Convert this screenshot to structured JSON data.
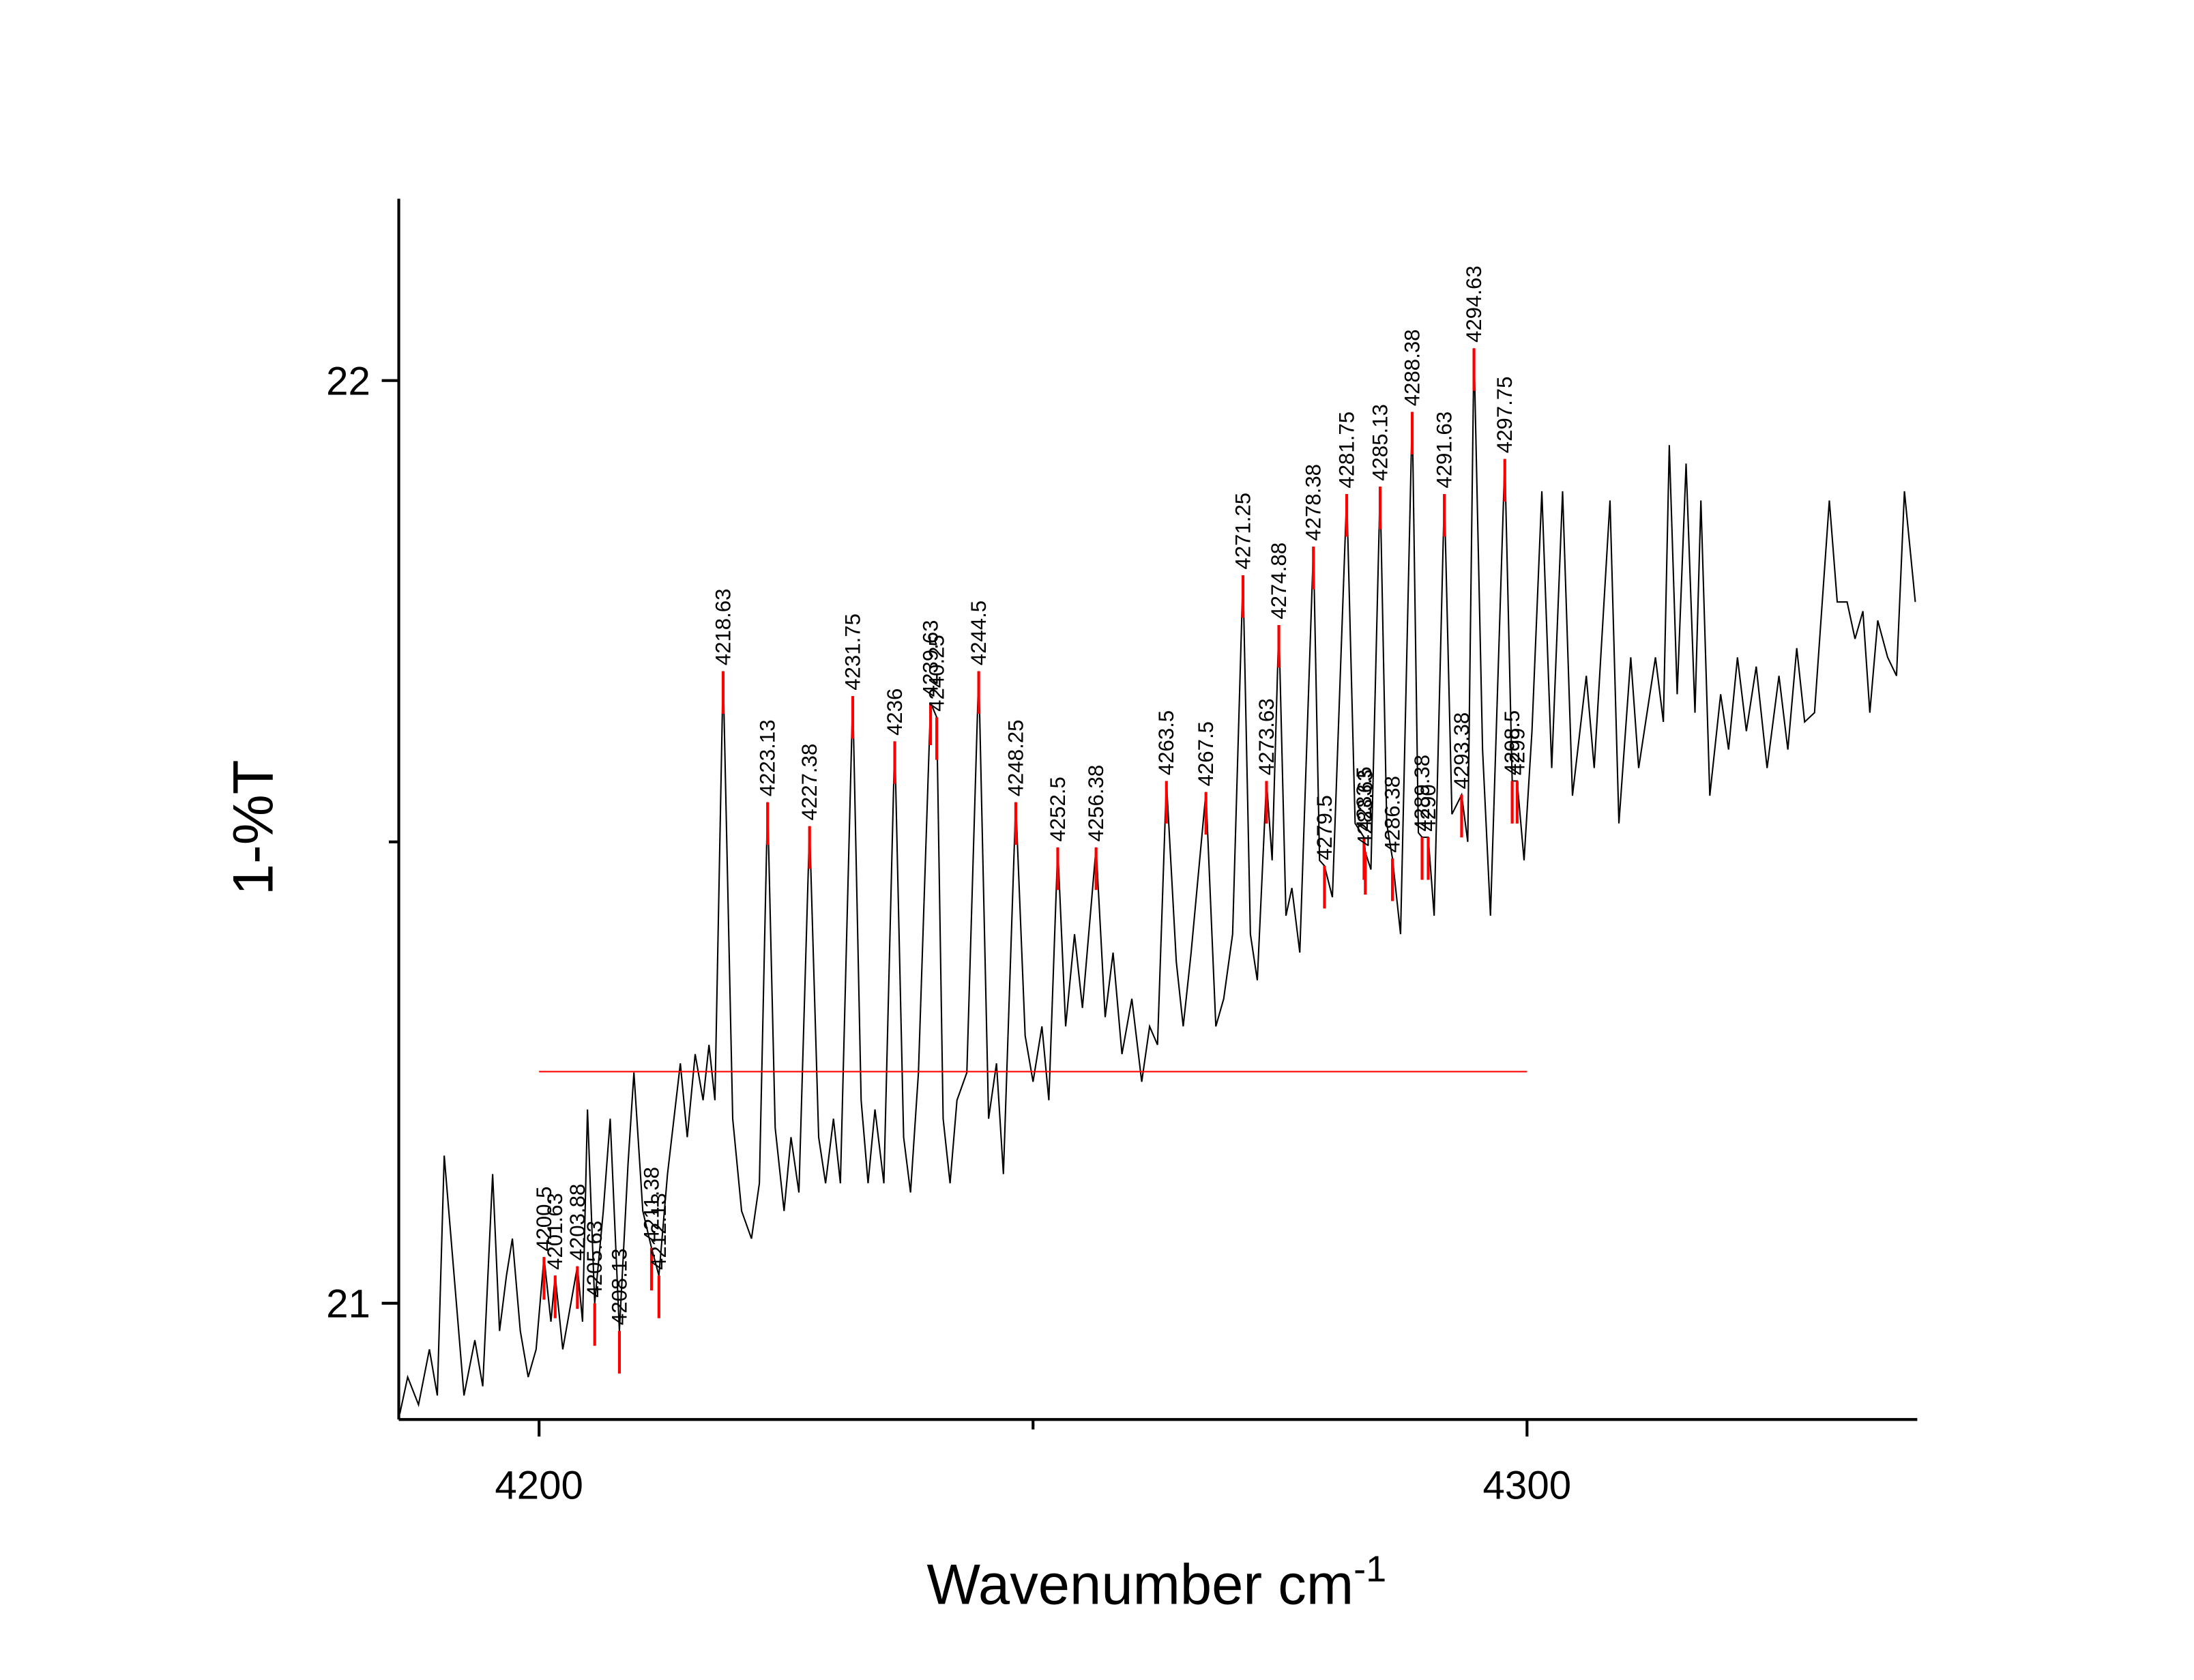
{
  "chart_data": {
    "type": "line",
    "x_label": "Wavenumber cm",
    "x_label_sup": "-1",
    "y_label": "1-%T",
    "xlim": [
      4185.8,
      4339.5
    ],
    "ylim": [
      20.874,
      22.197
    ],
    "xticks": [
      4200,
      4300
    ],
    "xminorticks": [
      4250
    ],
    "yticks": [
      21,
      22
    ],
    "yminorticks": [
      21.5
    ],
    "series": [
      {
        "color": "#000000",
        "x": [
          4185.9,
          4186.7,
          4187.8,
          4188.9,
          4189.7,
          4190.4,
          4191.4,
          4192.4,
          4193.5,
          4194.3,
          4195.3,
          4196.0,
          4196.7,
          4197.3,
          4198.1,
          4198.9,
          4199.7,
          4200.5,
          4201.2,
          4201.63,
          4202.4,
          4203.88,
          4204.4,
          4204.9,
          4205.63,
          4206.5,
          4207.2,
          4208.13,
          4209.0,
          4209.6,
          4210.5,
          4211.38,
          4212.13,
          4213.0,
          4214.3,
          4215.0,
          4215.8,
          4216.6,
          4217.2,
          4217.8,
          4218.63,
          4219.6,
          4220.5,
          4221.5,
          4222.3,
          4223.13,
          4223.9,
          4224.8,
          4225.5,
          4226.3,
          4227.38,
          4228.3,
          4229.0,
          4229.8,
          4230.5,
          4231.75,
          4232.6,
          4233.3,
          4234.0,
          4234.9,
          4236.0,
          4236.9,
          4237.6,
          4238.4,
          4239.63,
          4240.25,
          4240.9,
          4241.6,
          4242.3,
          4243.3,
          4244.5,
          4245.5,
          4246.3,
          4247.0,
          4248.25,
          4249.2,
          4250.0,
          4250.9,
          4251.6,
          4252.5,
          4253.3,
          4254.2,
          4255.0,
          4256.38,
          4257.3,
          4258.1,
          4259.0,
          4260.0,
          4261.0,
          4261.8,
          4262.6,
          4263.5,
          4264.5,
          4265.2,
          4266.0,
          4267.5,
          4268.5,
          4269.3,
          4270.2,
          4271.25,
          4272.0,
          4272.7,
          4273.63,
          4274.2,
          4274.88,
          4275.6,
          4276.2,
          4277.0,
          4278.38,
          4279.0,
          4279.5,
          4280.3,
          4281.75,
          4282.6,
          4283.5,
          4283.63,
          4284.2,
          4285.13,
          4285.8,
          4286.38,
          4287.2,
          4288.38,
          4289.0,
          4289.38,
          4290.0,
          4290.6,
          4291.63,
          4292.4,
          4293.38,
          4294.0,
          4294.63,
          4295.5,
          4296.3,
          4297.75,
          4298.5,
          4299.0,
          4299.7,
          4300.5,
          4301.5,
          4302.5,
          4303.6,
          4304.6,
          4306.0,
          4306.8,
          4308.4,
          4309.3,
          4310.5,
          4311.3,
          4313.0,
          4313.8,
          4314.4,
          4315.2,
          4316.1,
          4317.0,
          4317.6,
          4318.5,
          4319.6,
          4320.4,
          4321.3,
          4322.2,
          4323.2,
          4324.3,
          4325.5,
          4326.4,
          4327.3,
          4328.1,
          4329.1,
          4330.6,
          4331.4,
          4332.4,
          4333.2,
          4334.0,
          4334.7,
          4335.5,
          4336.5,
          4337.4,
          4338.2,
          4339.3
        ],
        "values": [
          20.88,
          20.92,
          20.89,
          20.95,
          20.9,
          21.16,
          21.03,
          20.9,
          20.96,
          20.91,
          21.14,
          20.97,
          21.03,
          21.07,
          20.97,
          20.92,
          20.95,
          21.05,
          20.98,
          21.03,
          20.95,
          21.04,
          20.98,
          21.21,
          21.0,
          21.1,
          21.2,
          20.97,
          21.15,
          21.25,
          21.1,
          21.06,
          21.03,
          21.14,
          21.26,
          21.18,
          21.27,
          21.22,
          21.28,
          21.22,
          21.685,
          21.2,
          21.1,
          21.07,
          21.13,
          21.543,
          21.19,
          21.1,
          21.18,
          21.12,
          21.517,
          21.18,
          21.13,
          21.2,
          21.13,
          21.658,
          21.22,
          21.13,
          21.21,
          21.13,
          21.609,
          21.18,
          21.12,
          21.25,
          21.651,
          21.635,
          21.2,
          21.13,
          21.22,
          21.25,
          21.685,
          21.2,
          21.26,
          21.14,
          21.543,
          21.29,
          21.24,
          21.3,
          21.22,
          21.494,
          21.3,
          21.4,
          21.32,
          21.494,
          21.31,
          21.38,
          21.27,
          21.33,
          21.24,
          21.3,
          21.28,
          21.566,
          21.37,
          21.3,
          21.38,
          21.554,
          21.3,
          21.33,
          21.4,
          21.789,
          21.4,
          21.35,
          21.566,
          21.48,
          21.735,
          21.42,
          21.45,
          21.38,
          21.82,
          21.48,
          21.474,
          21.44,
          21.877,
          21.52,
          21.505,
          21.489,
          21.47,
          21.885,
          21.52,
          21.482,
          21.4,
          21.966,
          21.51,
          21.505,
          21.505,
          21.42,
          21.877,
          21.53,
          21.551,
          21.5,
          22.035,
          21.6,
          21.42,
          21.915,
          21.566,
          21.566,
          21.48,
          21.62,
          21.88,
          21.58,
          21.88,
          21.55,
          21.68,
          21.58,
          21.87,
          21.52,
          21.7,
          21.58,
          21.7,
          21.63,
          21.93,
          21.66,
          21.91,
          21.64,
          21.87,
          21.55,
          21.66,
          21.6,
          21.7,
          21.62,
          21.69,
          21.58,
          21.68,
          21.6,
          21.71,
          21.63,
          21.64,
          21.87,
          21.76,
          21.76,
          21.72,
          21.75,
          21.64,
          21.74,
          21.7,
          21.68,
          21.88,
          21.76
        ]
      }
    ],
    "peaks": {
      "color": "#ff0000",
      "x": [
        4200.5,
        4201.63,
        4203.88,
        4205.63,
        4208.13,
        4211.38,
        4212.13,
        4218.63,
        4223.13,
        4227.38,
        4231.75,
        4236,
        4239.63,
        4240.25,
        4244.5,
        4248.25,
        4252.5,
        4256.38,
        4263.5,
        4267.5,
        4271.25,
        4273.63,
        4274.88,
        4278.38,
        4279.5,
        4281.75,
        4283.5,
        4283.63,
        4285.13,
        4286.38,
        4288.38,
        4289.38,
        4290,
        4291.63,
        4293.38,
        4294.63,
        4297.75,
        4298.5,
        4299
      ],
      "values": [
        21.05,
        21.03,
        21.04,
        21.0,
        20.97,
        21.06,
        21.03,
        21.685,
        21.543,
        21.517,
        21.658,
        21.609,
        21.651,
        21.635,
        21.685,
        21.543,
        21.494,
        21.494,
        21.566,
        21.554,
        21.789,
        21.566,
        21.735,
        21.82,
        21.474,
        21.877,
        21.505,
        21.489,
        21.885,
        21.482,
        21.966,
        21.505,
        21.505,
        21.877,
        21.551,
        22.035,
        21.915,
        21.566,
        21.566
      ]
    },
    "baseline": {
      "color": "#ff0000",
      "x": [
        4200,
        4300
      ],
      "values": [
        21.251,
        21.251
      ]
    }
  }
}
